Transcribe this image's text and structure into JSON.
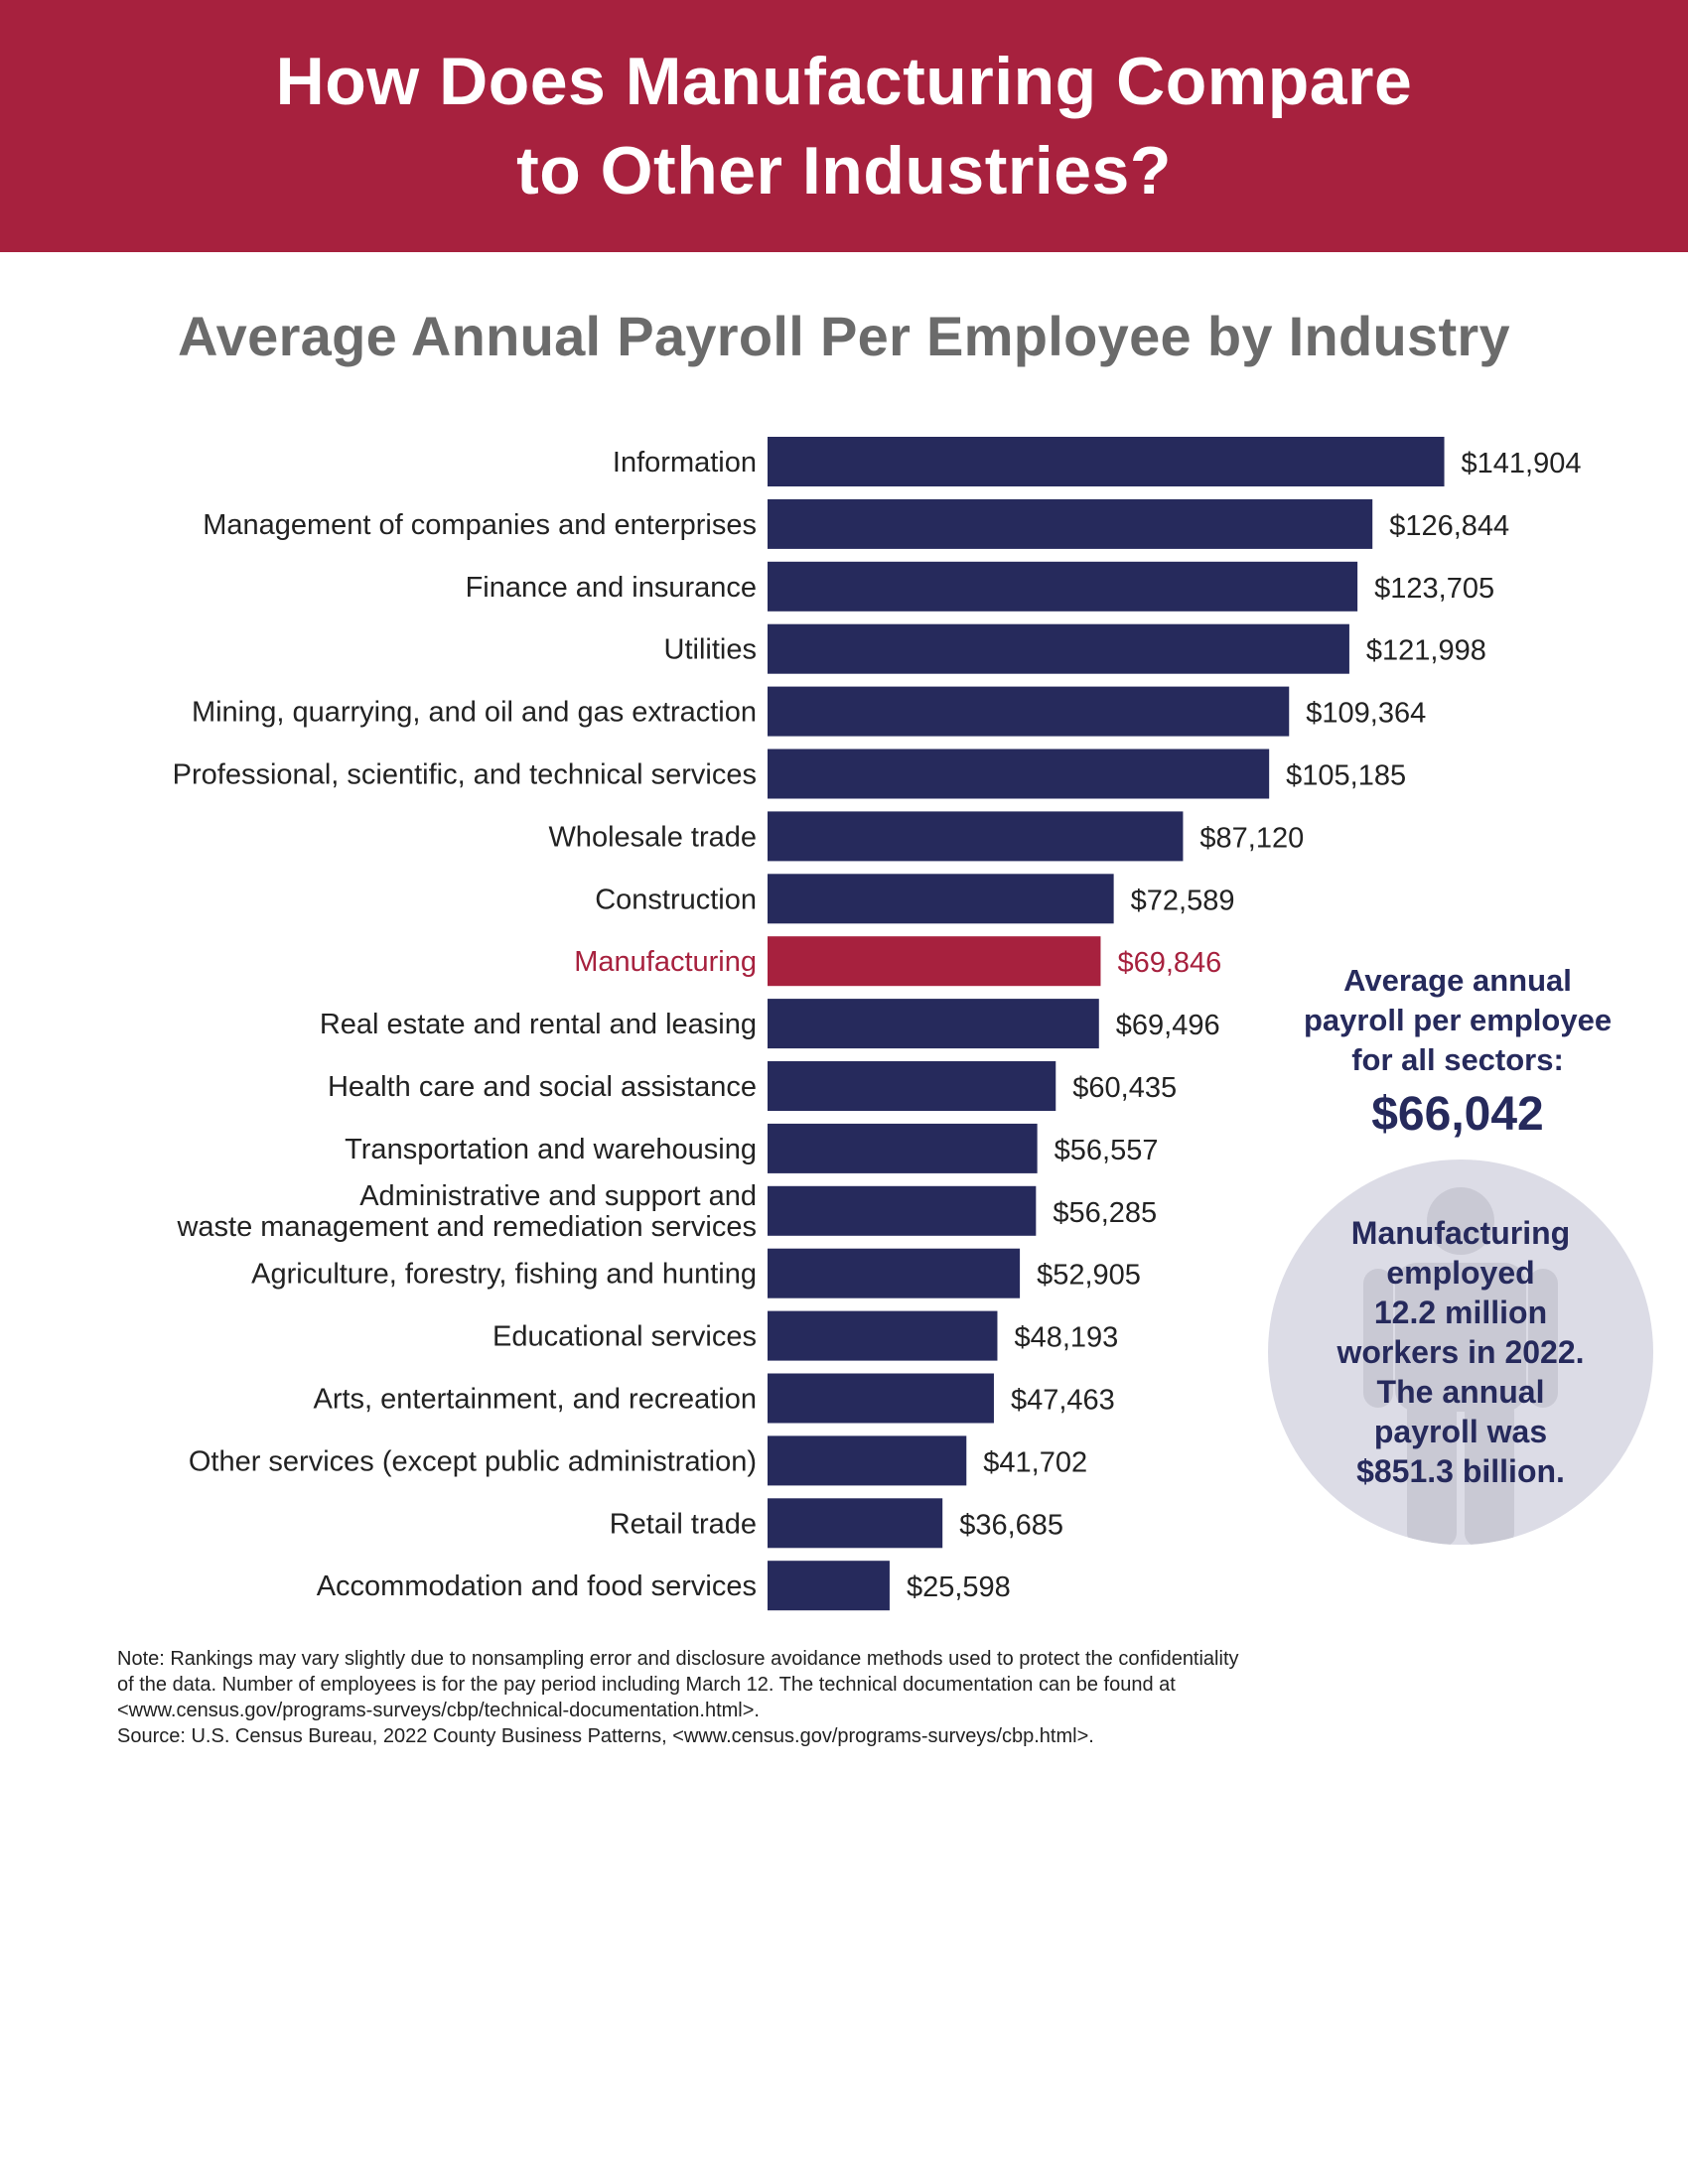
{
  "header": {
    "title_line1": "How Does Manufacturing Compare",
    "title_line2": "to Other Industries?"
  },
  "chart_data": {
    "type": "bar",
    "orientation": "horizontal",
    "title": "Average Annual Payroll Per Employee by Industry",
    "xlabel": "",
    "ylabel": "",
    "xlim": [
      0,
      145000
    ],
    "grid": false,
    "categories": [
      [
        "Information"
      ],
      [
        "Management of companies and enterprises"
      ],
      [
        "Finance and insurance"
      ],
      [
        "Utilities"
      ],
      [
        "Mining, quarrying, and oil and gas extraction"
      ],
      [
        "Professional, scientific, and technical services"
      ],
      [
        "Wholesale trade"
      ],
      [
        "Construction"
      ],
      [
        "Manufacturing"
      ],
      [
        "Real estate and rental and leasing"
      ],
      [
        "Health care and social assistance"
      ],
      [
        "Transportation and warehousing"
      ],
      [
        "Administrative and support and",
        "waste management and remediation services"
      ],
      [
        "Agriculture, forestry, fishing and hunting"
      ],
      [
        "Educational services"
      ],
      [
        "Arts, entertainment, and recreation"
      ],
      [
        "Other services (except public administration)"
      ],
      [
        "Retail trade"
      ],
      [
        "Accommodation and food services"
      ]
    ],
    "values": [
      141904,
      126844,
      123705,
      121998,
      109364,
      105185,
      87120,
      72589,
      69846,
      69496,
      60435,
      56557,
      56285,
      52905,
      48193,
      47463,
      41702,
      36685,
      25598
    ],
    "value_labels": [
      "$141,904",
      "$126,844",
      "$123,705",
      "$121,998",
      "$109,364",
      "$105,185",
      "$87,120",
      "$72,589",
      "$69,846",
      "$69,496",
      "$60,435",
      "$56,557",
      "$56,285",
      "$52,905",
      "$48,193",
      "$47,463",
      "$41,702",
      "$36,685",
      "$25,598"
    ],
    "highlight_category": "Manufacturing",
    "colors": {
      "bar": "#262a5c",
      "highlight": "#a7213e",
      "label": "#222222"
    }
  },
  "callout": {
    "line1": "Average annual",
    "line2": "payroll per employee",
    "line3": "for all sectors:",
    "value": "$66,042"
  },
  "circle": {
    "icon": "person-silhouette-icon",
    "lines": [
      "Manufacturing",
      "employed",
      "12.2 million",
      "workers in 2022.",
      "The annual",
      "payroll was",
      "$851.3 billion."
    ]
  },
  "note": {
    "line1": "Note: Rankings may vary slightly due to nonsampling error and disclosure avoidance methods used to protect the confidentiality",
    "line2": "of the data. Number of employees is for the pay period including March 12. The technical documentation can be found at",
    "line3": "<www.census.gov/programs-surveys/cbp/technical-documentation.html>.",
    "source": "Source: U.S. Census Bureau, 2022 County Business Patterns, <www.census.gov/programs-surveys/cbp.html>."
  },
  "colors": {
    "banner": "#a7213e",
    "navy": "#262a5c",
    "subtitle": "#6b6b6b",
    "circle": "#dcdce6",
    "person": "#c9c9d4"
  }
}
